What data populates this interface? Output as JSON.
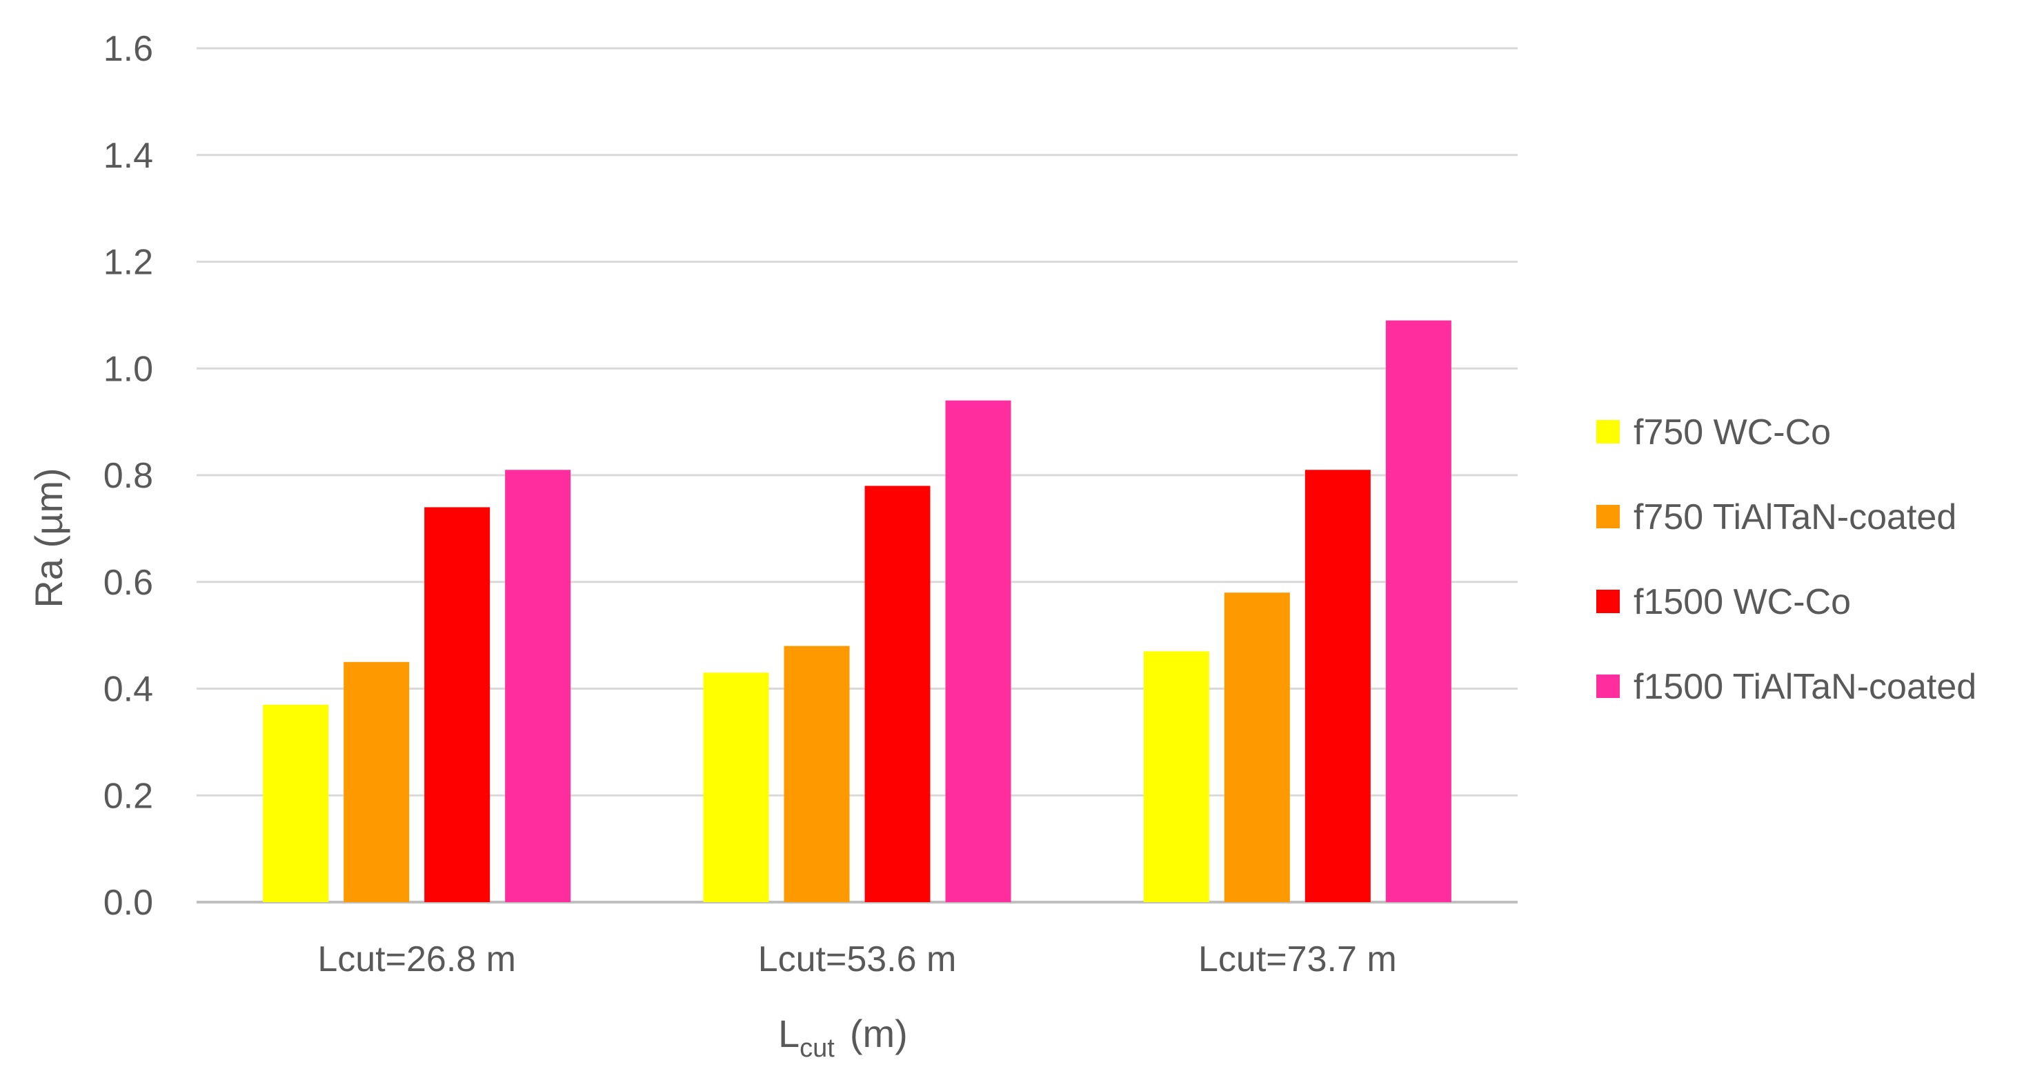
{
  "chart_data": {
    "type": "bar",
    "categories": [
      "Lcut=26.8 m",
      "Lcut=53.6 m",
      "Lcut=73.7 m"
    ],
    "series": [
      {
        "name": "f750 WC-Co",
        "color": "#FFFF00",
        "values": [
          0.37,
          0.43,
          0.47
        ]
      },
      {
        "name": "f750 TiAlTaN-coated",
        "color": "#FF9900",
        "values": [
          0.45,
          0.48,
          0.58
        ]
      },
      {
        "name": "f1500 WC-Co",
        "color": "#FF0000",
        "values": [
          0.74,
          0.78,
          0.81
        ]
      },
      {
        "name": "f1500 TiAlTaN-coated",
        "color": "#FF2D9E",
        "values": [
          0.81,
          0.94,
          1.09
        ]
      }
    ],
    "ylim": [
      0,
      1.6
    ],
    "yticks": [
      "0.0",
      "0.2",
      "0.4",
      "0.6",
      "0.8",
      "1.0",
      "1.2",
      "1.4",
      "1.6"
    ],
    "ylabel": "Ra (µm)",
    "xlabel": {
      "main": "L",
      "subscript": "cut",
      "suffix": "(m)"
    },
    "grid": true,
    "legend_position": "right"
  }
}
